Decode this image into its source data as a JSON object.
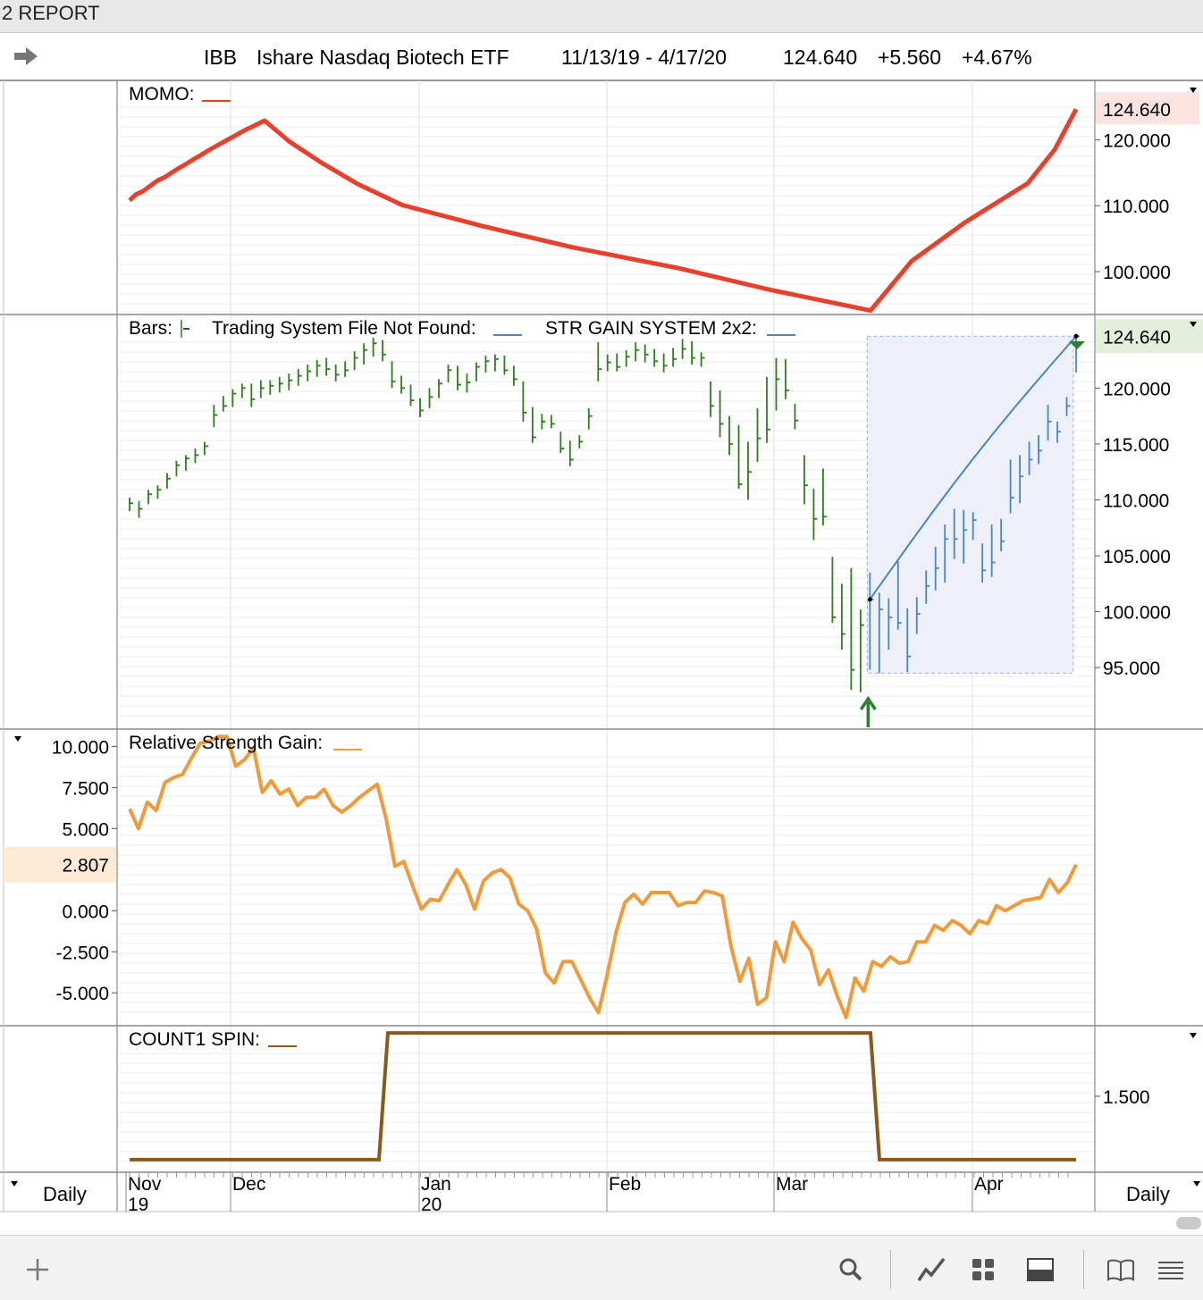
{
  "window": {
    "title": "2 REPORT"
  },
  "header": {
    "symbol": "IBB",
    "name": "Ishare Nasdaq Biotech ETF",
    "date_range": "11/13/19 - 4/17/20",
    "last": "124.640",
    "change": "+5.560",
    "change_pct": "+4.67%"
  },
  "periodicity": {
    "left": "Daily",
    "right": "Daily"
  },
  "colors": {
    "momo": "#e8402a",
    "bars_green": "#2e7d1e",
    "bars_blue": "#4a86c0",
    "rsg": "#f09a3a",
    "count": "#8a5a1c",
    "last_price_tag_red": "#fbe3e0",
    "last_price_tag_green": "#e2efdb",
    "rsg_tag": "#fde9d4"
  },
  "chart_data": [
    {
      "type": "line",
      "title": "MOMO:",
      "series": [
        {
          "name": "MOMO",
          "values": [
            110.8,
            111.7,
            112.2,
            113.0,
            113.8,
            114.3,
            115.0,
            115.7,
            116.3,
            117.0,
            117.6,
            118.3,
            118.9,
            119.5,
            120.1,
            120.7,
            121.3,
            122.1,
            122.9,
            119.7,
            116.5,
            113.3,
            110.1,
            106.9,
            103.7,
            100.5,
            97.3,
            94.1,
            101.6,
            107.5,
            113.4,
            118.5,
            124.64
          ]
        }
      ],
      "last_value": "124.640",
      "y_ticks": [
        "120.000",
        "110.000",
        "100.000"
      ],
      "ylim": [
        93.5,
        129
      ]
    },
    {
      "type": "bar",
      "title": "Bars:",
      "legend_extra": [
        "Trading System File Not Found:",
        "STR GAIN SYSTEM 2x2:"
      ],
      "last_value": "124.640",
      "y_ticks": [
        "120.000",
        "115.000",
        "110.000",
        "105.000",
        "100.000",
        "95.000"
      ],
      "ylim": [
        89.5,
        126.5
      ],
      "ohlc_green": [
        [
          110.2,
          109.0,
          109.7
        ],
        [
          109.9,
          108.4,
          109.2
        ],
        [
          110.9,
          109.6,
          110.5
        ],
        [
          111.3,
          110.1,
          110.9
        ],
        [
          112.4,
          111.0,
          111.9
        ],
        [
          113.5,
          112.1,
          113.1
        ],
        [
          114.0,
          112.6,
          113.7
        ],
        [
          114.6,
          113.3,
          114.0
        ],
        [
          115.2,
          114.0,
          114.8
        ],
        [
          118.5,
          116.5,
          117.6
        ],
        [
          119.3,
          117.9,
          118.4
        ],
        [
          119.9,
          118.3,
          119.5
        ],
        [
          120.4,
          119.1,
          120.0
        ],
        [
          120.4,
          118.3,
          119.0
        ],
        [
          120.7,
          119.1,
          120.0
        ],
        [
          120.7,
          119.4,
          120.2
        ],
        [
          121.0,
          119.6,
          120.4
        ],
        [
          121.3,
          119.8,
          120.7
        ],
        [
          121.7,
          120.2,
          121.1
        ],
        [
          122.1,
          120.6,
          121.5
        ],
        [
          122.5,
          121.0,
          122.0
        ],
        [
          122.7,
          121.1,
          121.7
        ],
        [
          122.1,
          120.6,
          121.2
        ],
        [
          122.4,
          121.0,
          121.6
        ],
        [
          123.3,
          121.6,
          122.7
        ],
        [
          124.0,
          122.1,
          123.4
        ],
        [
          124.5,
          122.8,
          124.0
        ],
        [
          124.3,
          122.4,
          123.0
        ],
        [
          122.4,
          120.0,
          120.6
        ],
        [
          121.1,
          119.5,
          120.0
        ],
        [
          120.3,
          118.4,
          118.9
        ],
        [
          119.1,
          117.4,
          118.0
        ],
        [
          120.0,
          118.2,
          119.2
        ],
        [
          120.8,
          119.1,
          120.4
        ],
        [
          122.1,
          120.5,
          121.6
        ],
        [
          122.0,
          119.8,
          120.3
        ],
        [
          121.3,
          119.6,
          120.5
        ],
        [
          122.3,
          120.6,
          121.9
        ],
        [
          122.9,
          121.4,
          122.4
        ],
        [
          123.0,
          121.5,
          122.6
        ],
        [
          122.9,
          121.2,
          121.6
        ],
        [
          122.0,
          120.2,
          120.8
        ],
        [
          120.6,
          117.0,
          117.8
        ],
        [
          118.3,
          115.1,
          115.6
        ],
        [
          117.7,
          116.3,
          117.0
        ],
        [
          117.6,
          116.4,
          116.8
        ],
        [
          116.1,
          114.2,
          114.6
        ],
        [
          115.3,
          113.0,
          113.6
        ],
        [
          115.8,
          114.6,
          115.2
        ],
        [
          118.2,
          116.3,
          117.5
        ],
        [
          124.1,
          120.6,
          121.7
        ],
        [
          123.0,
          121.5,
          122.3
        ],
        [
          123.1,
          121.5,
          121.9
        ],
        [
          123.4,
          121.9,
          122.8
        ],
        [
          124.1,
          122.4,
          123.4
        ],
        [
          123.9,
          122.3,
          123.0
        ],
        [
          123.5,
          121.9,
          122.4
        ],
        [
          123.1,
          121.4,
          122.0
        ],
        [
          123.6,
          121.9,
          122.6
        ],
        [
          124.4,
          122.6,
          123.5
        ],
        [
          124.2,
          122.1,
          122.7
        ],
        [
          123.2,
          121.9,
          122.7
        ],
        [
          120.6,
          117.4,
          118.4
        ],
        [
          119.8,
          115.6,
          116.8
        ],
        [
          117.5,
          114.0,
          115.0
        ],
        [
          116.7,
          111.0,
          111.4
        ],
        [
          115.2,
          110.0,
          112.5
        ],
        [
          118.2,
          113.4,
          115.5
        ],
        [
          121.0,
          115.1,
          116.3
        ],
        [
          122.7,
          118.0,
          120.8
        ],
        [
          122.6,
          119.0,
          119.8
        ],
        [
          118.6,
          116.3,
          117.1
        ],
        [
          114.0,
          109.6,
          111.3
        ],
        [
          111.0,
          106.4,
          108.3
        ],
        [
          112.8,
          107.7,
          108.5
        ],
        [
          104.9,
          99.0,
          99.5
        ],
        [
          102.5,
          96.6,
          98.0
        ],
        [
          103.9,
          93.0,
          94.8
        ],
        [
          100.2,
          92.8,
          98.8
        ]
      ],
      "ohlc_blue": [
        [
          103.5,
          94.8,
          101.1
        ],
        [
          101.7,
          94.5,
          100.2
        ],
        [
          101.2,
          96.6,
          99.5
        ],
        [
          104.5,
          98.4,
          99.0
        ],
        [
          100.3,
          94.6,
          96.0
        ],
        [
          101.3,
          98.0,
          99.8
        ],
        [
          103.7,
          100.7,
          102.3
        ],
        [
          105.8,
          101.9,
          103.9
        ],
        [
          107.8,
          102.6,
          106.5
        ],
        [
          109.2,
          104.7,
          106.5
        ],
        [
          109.1,
          104.3,
          107.3
        ],
        [
          108.9,
          106.4,
          108.2
        ],
        [
          106.1,
          102.6,
          103.7
        ],
        [
          107.8,
          103.1,
          104.4
        ],
        [
          108.3,
          105.4,
          106.3
        ],
        [
          113.6,
          108.8,
          110.2
        ],
        [
          114.0,
          109.7,
          112.1
        ],
        [
          115.2,
          112.2,
          113.6
        ],
        [
          115.8,
          113.2,
          114.4
        ],
        [
          118.5,
          115.3,
          117.0
        ],
        [
          117.0,
          115.1,
          116.1
        ],
        [
          119.2,
          117.5,
          118.4
        ],
        [
          124.64,
          121.4,
          124.64
        ]
      ],
      "str_gain_line": {
        "from": 101.1,
        "to": 124.64
      },
      "buy_arrow": "up"
    },
    {
      "type": "line",
      "title": "Relative Strength Gain:",
      "series": [
        {
          "name": "Relative Strength Gain",
          "values": [
            6.2,
            5.0,
            6.6,
            6.1,
            7.8,
            8.1,
            8.3,
            9.3,
            10.2,
            10.3,
            10.6,
            10.6,
            8.8,
            9.2,
            9.9,
            7.2,
            7.9,
            7.1,
            7.4,
            6.4,
            6.9,
            6.9,
            7.4,
            6.4,
            6.0,
            6.4,
            6.9,
            7.3,
            7.7,
            5.6,
            2.7,
            3.0,
            1.5,
            0.1,
            0.7,
            0.6,
            1.6,
            2.5,
            1.6,
            0.1,
            1.8,
            2.3,
            2.5,
            2.0,
            0.4,
            0.0,
            -1.1,
            -3.8,
            -4.4,
            -3.1,
            -3.1,
            -4.2,
            -5.3,
            -6.2,
            -3.9,
            -1.3,
            0.5,
            1.0,
            0.4,
            1.1,
            1.1,
            1.1,
            0.3,
            0.5,
            0.5,
            1.2,
            1.1,
            0.9,
            -2.2,
            -4.3,
            -2.9,
            -5.7,
            -5.3,
            -1.9,
            -3.1,
            -0.7,
            -1.7,
            -2.4,
            -4.5,
            -3.6,
            -5.2,
            -6.5,
            -4.1,
            -4.9,
            -3.1,
            -3.4,
            -2.8,
            -3.2,
            -3.1,
            -1.9,
            -1.9,
            -0.9,
            -1.2,
            -0.6,
            -0.9,
            -1.4,
            -0.6,
            -0.8,
            0.3,
            0.0,
            0.3,
            0.6,
            0.7,
            0.8,
            1.9,
            1.1,
            1.7,
            2.807
          ]
        }
      ],
      "last_value": "2.807",
      "y_ticks": [
        "10.000",
        "7.500",
        "5.000",
        "0.000",
        "-2.500",
        "-5.000"
      ],
      "ylim": [
        -7.0,
        11.0
      ]
    },
    {
      "type": "line",
      "title": "COUNT1 SPIN:",
      "series": [
        {
          "name": "COUNT1 SPIN",
          "values": [
            1,
            2,
            2,
            1,
            1
          ]
        }
      ],
      "y_ticks": [
        "1.500"
      ],
      "ylim": [
        0.9,
        2.05
      ]
    }
  ],
  "x_axis": {
    "months": [
      {
        "label": "Nov",
        "year": "19"
      },
      {
        "label": "Dec",
        "year": ""
      },
      {
        "label": "Jan",
        "year": "20"
      },
      {
        "label": "Feb",
        "year": ""
      },
      {
        "label": "Mar",
        "year": ""
      },
      {
        "label": "Apr",
        "year": ""
      }
    ]
  },
  "toolbar": {
    "icons": [
      "plus-icon",
      "search-icon",
      "line-chart-icon",
      "grid-icon",
      "panel-icon",
      "book-icon",
      "list-icon"
    ]
  }
}
